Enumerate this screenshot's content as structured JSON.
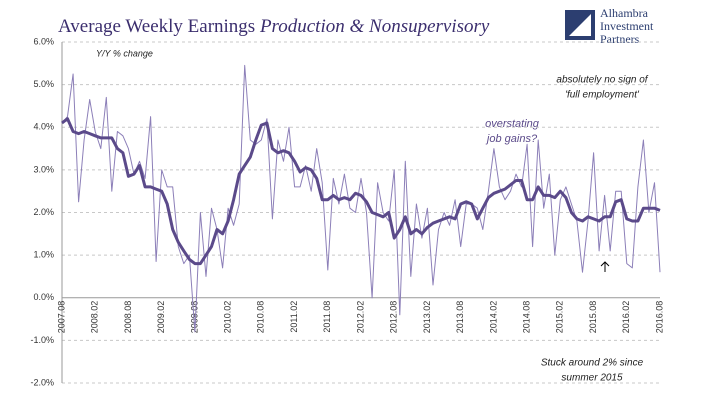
{
  "chart_data": {
    "type": "line",
    "title": "Average Weekly Earnings",
    "title_italic": "Production & Nonsupervisory",
    "subtitle": "Y/Y % change",
    "logo": [
      "Alhambra",
      "Investment",
      "Partners"
    ],
    "annotations": [
      "overstating",
      "job gains?",
      "absolutely no sign of",
      "'full employment'",
      "Stuck around 2% since",
      "summer 2015"
    ],
    "categories": [
      "2007.08",
      null,
      null,
      null,
      null,
      null,
      "2008.02",
      null,
      null,
      null,
      null,
      null,
      "2008.08",
      null,
      null,
      null,
      null,
      null,
      "2009.02",
      null,
      null,
      null,
      null,
      null,
      "2009.08",
      null,
      null,
      null,
      null,
      null,
      "2010.02",
      null,
      null,
      null,
      null,
      null,
      "2010.08",
      null,
      null,
      null,
      null,
      null,
      "2011.02",
      null,
      null,
      null,
      null,
      null,
      "2011.08",
      null,
      null,
      null,
      null,
      null,
      "2012.02",
      null,
      null,
      null,
      null,
      null,
      "2012.08",
      null,
      null,
      null,
      null,
      null,
      "2013.02",
      null,
      null,
      null,
      null,
      null,
      "2013.08",
      null,
      null,
      null,
      null,
      null,
      "2014.02",
      null,
      null,
      null,
      null,
      null,
      "2014.08",
      null,
      null,
      null,
      null,
      null,
      "2015.02",
      null,
      null,
      null,
      null,
      null,
      "2015.08",
      null,
      null,
      null,
      null,
      null,
      "2016.02",
      null,
      null,
      null,
      null,
      null,
      "2016.08"
    ],
    "series": [
      {
        "color": "#8c7fb8",
        "width": 1,
        "values": [
          4.1,
          4.25,
          5.25,
          2.25,
          3.7,
          4.65,
          3.9,
          3.5,
          4.7,
          2.5,
          3.9,
          3.8,
          3.5,
          2.9,
          3.2,
          2.8,
          4.25,
          0.85,
          3.0,
          2.6,
          2.6,
          1.2,
          0.8,
          1.0,
          -0.8,
          2.0,
          0.5,
          2.1,
          1.6,
          0.7,
          2.1,
          1.7,
          2.2,
          5.45,
          3.7,
          3.6,
          3.7,
          4.2,
          1.85,
          3.7,
          3.2,
          4.0,
          2.6,
          2.6,
          3.1,
          2.5,
          3.5,
          2.7,
          0.65,
          2.8,
          2.2,
          2.9,
          2.1,
          2.0,
          2.8,
          2.0,
          0.0,
          2.7,
          2.0,
          1.8,
          3.0,
          -0.4,
          3.2,
          0.5,
          2.2,
          1.4,
          2.1,
          0.3,
          1.6,
          2.0,
          1.7,
          2.3,
          1.2,
          2.2,
          2.2,
          2.1,
          1.6,
          2.5,
          3.5,
          2.6,
          2.3,
          2.5,
          2.9,
          2.6,
          3.6,
          1.2,
          3.7,
          2.1,
          2.9,
          1.0,
          2.3,
          2.6,
          2.2,
          1.8,
          0.6,
          1.8,
          3.4,
          1.1,
          2.4,
          1.1,
          2.5,
          2.5,
          0.8,
          0.7,
          2.6,
          3.7,
          2.0,
          2.7,
          0.6
        ]
      },
      {
        "color": "#5b4a8a",
        "width": 3,
        "values": [
          4.1,
          4.2,
          3.9,
          3.85,
          3.9,
          3.85,
          3.8,
          3.75,
          3.75,
          3.75,
          3.5,
          3.4,
          2.85,
          2.9,
          3.1,
          2.6,
          2.6,
          2.55,
          2.5,
          2.2,
          1.6,
          1.3,
          1.1,
          0.9,
          0.8,
          0.8,
          1.0,
          1.2,
          1.6,
          1.5,
          1.8,
          2.3,
          2.9,
          3.1,
          3.3,
          3.7,
          4.05,
          4.1,
          3.5,
          3.4,
          3.45,
          3.4,
          3.2,
          2.95,
          3.05,
          3.0,
          2.8,
          2.3,
          2.3,
          2.4,
          2.3,
          2.35,
          2.3,
          2.45,
          2.4,
          2.25,
          2.0,
          1.95,
          1.9,
          2.0,
          1.4,
          1.6,
          1.9,
          1.5,
          1.6,
          1.5,
          1.65,
          1.75,
          1.8,
          1.85,
          1.9,
          1.85,
          2.2,
          2.25,
          2.2,
          1.85,
          2.1,
          2.35,
          2.45,
          2.5,
          2.55,
          2.65,
          2.75,
          2.75,
          2.3,
          2.3,
          2.6,
          2.4,
          2.4,
          2.35,
          2.5,
          2.35,
          2.0,
          1.85,
          1.8,
          1.9,
          1.85,
          1.8,
          1.9,
          1.9,
          2.25,
          2.3,
          1.85,
          1.8,
          1.8,
          2.1,
          2.1,
          2.1,
          2.05
        ]
      }
    ],
    "ylim": [
      -2,
      6
    ],
    "yticks": [
      {
        "value": -2,
        "label": "-2.0%"
      },
      {
        "value": -1,
        "label": "-1.0%"
      },
      {
        "value": 0,
        "label": "0.0%"
      },
      {
        "value": 1,
        "label": "1.0%"
      },
      {
        "value": 2,
        "label": "2.0%"
      },
      {
        "value": 3,
        "label": "3.0%"
      },
      {
        "value": 4,
        "label": "4.0%"
      },
      {
        "value": 5,
        "label": "5.0%"
      },
      {
        "value": 6,
        "label": "6.0%"
      }
    ],
    "grid": true
  }
}
